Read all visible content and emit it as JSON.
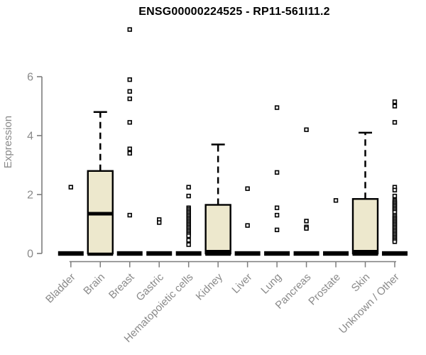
{
  "chart_data": {
    "type": "boxplot",
    "title": "ENSG00000224525 - RP11-561I11.2",
    "ylabel": "Expression",
    "xlabel": "",
    "ylim": [
      0,
      6
    ],
    "yticks": [
      0,
      2,
      4,
      6
    ],
    "grid": false,
    "legend": "none",
    "box_fill_color": "#EDE8CD",
    "box_line_color": "#000000",
    "axis_text_color": "#8a8a8a",
    "axis_line_color": "#7d7d7d",
    "categories": [
      "Bladder",
      "Brain",
      "Breast",
      "Gastric",
      "Hematopoietic cells",
      "Kidney",
      "Liver",
      "Lung",
      "Pancreas",
      "Prostate",
      "Skin",
      "Unknown / Other"
    ],
    "series": [
      {
        "category": "Bladder",
        "q1": 0,
        "median": 0,
        "q3": 0,
        "whisker_low": 0,
        "whisker_high": 0,
        "outliers": [
          2.25
        ]
      },
      {
        "category": "Brain",
        "q1": 0,
        "median": 1.35,
        "q3": 2.8,
        "whisker_low": 0,
        "whisker_high": 4.8,
        "outliers": []
      },
      {
        "category": "Breast",
        "q1": 0,
        "median": 0,
        "q3": 0,
        "whisker_low": 0,
        "whisker_high": 0,
        "outliers": [
          7.6,
          5.9,
          5.5,
          5.25,
          4.45,
          3.55,
          3.4,
          1.3
        ]
      },
      {
        "category": "Gastric",
        "q1": 0,
        "median": 0,
        "q3": 0,
        "whisker_low": 0,
        "whisker_high": 0,
        "outliers": [
          1.15,
          1.05
        ]
      },
      {
        "category": "Hematopoietic cells",
        "q1": 0,
        "median": 0,
        "q3": 0,
        "whisker_low": 0,
        "whisker_high": 0,
        "outliers": [
          2.25,
          1.95,
          1.55,
          1.5,
          1.45,
          1.4,
          1.35,
          1.3,
          1.25,
          1.2,
          1.15,
          1.1,
          1.05,
          1.0,
          0.95,
          0.9,
          0.85,
          0.8,
          0.75,
          0.7,
          0.65,
          0.6,
          0.45,
          0.3
        ]
      },
      {
        "category": "Kidney",
        "q1": 0,
        "median": 0,
        "q3": 1.65,
        "whisker_low": 0,
        "whisker_high": 3.7,
        "outliers": []
      },
      {
        "category": "Liver",
        "q1": 0,
        "median": 0,
        "q3": 0,
        "whisker_low": 0,
        "whisker_high": 0,
        "outliers": [
          2.2,
          0.95
        ]
      },
      {
        "category": "Lung",
        "q1": 0,
        "median": 0,
        "q3": 0,
        "whisker_low": 0,
        "whisker_high": 0,
        "outliers": [
          4.95,
          2.75,
          1.55,
          1.3,
          0.8
        ]
      },
      {
        "category": "Pancreas",
        "q1": 0,
        "median": 0,
        "q3": 0,
        "whisker_low": 0,
        "whisker_high": 0,
        "outliers": [
          4.2,
          1.1,
          0.9,
          0.85
        ]
      },
      {
        "category": "Prostate",
        "q1": 0,
        "median": 0,
        "q3": 0,
        "whisker_low": 0,
        "whisker_high": 0,
        "outliers": [
          1.8
        ]
      },
      {
        "category": "Skin",
        "q1": 0,
        "median": 0,
        "q3": 1.85,
        "whisker_low": 0,
        "whisker_high": 4.1,
        "outliers": []
      },
      {
        "category": "Unknown / Other",
        "q1": 0,
        "median": 0,
        "q3": 0,
        "whisker_low": 0,
        "whisker_high": 0,
        "outliers": [
          5.15,
          5.0,
          4.45,
          2.25,
          2.15,
          1.95,
          1.8,
          1.75,
          1.7,
          1.65,
          1.6,
          1.55,
          1.5,
          1.45,
          1.4,
          1.3,
          1.25,
          1.2,
          1.15,
          1.1,
          1.05,
          1.0,
          0.95,
          0.9,
          0.85,
          0.8,
          0.75,
          0.7,
          0.65,
          0.6,
          0.55,
          0.5,
          0.45,
          0.4
        ]
      }
    ]
  }
}
